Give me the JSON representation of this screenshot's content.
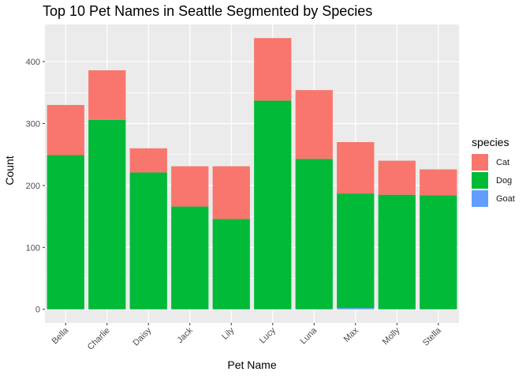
{
  "chart_data": {
    "type": "bar",
    "stacked": true,
    "title": "Top 10 Pet Names in Seattle Segmented by Species",
    "xlabel": "Pet Name",
    "ylabel": "Count",
    "categories": [
      "Bella",
      "Charlie",
      "Daisy",
      "Jack",
      "Lily",
      "Lucy",
      "Luna",
      "Max",
      "Molly",
      "Stella"
    ],
    "series": [
      {
        "name": "Goat",
        "color": "#619CFF",
        "values": [
          0,
          0,
          0,
          0,
          0,
          0,
          0,
          2,
          0,
          0
        ]
      },
      {
        "name": "Dog",
        "color": "#00BA38",
        "values": [
          249,
          306,
          221,
          166,
          146,
          337,
          243,
          185,
          185,
          184
        ]
      },
      {
        "name": "Cat",
        "color": "#F8766D",
        "values": [
          81,
          80,
          39,
          65,
          85,
          101,
          111,
          83,
          55,
          42
        ]
      }
    ],
    "legend_title": "species",
    "legend_order": [
      "Cat",
      "Dog",
      "Goat"
    ],
    "legend_position": "right",
    "yticks": [
      0,
      100,
      200,
      300,
      400
    ],
    "ylim": [
      -22,
      460
    ],
    "grid": true,
    "panel_background": "#EBEBEB",
    "gridline_color": "#FFFFFF"
  }
}
